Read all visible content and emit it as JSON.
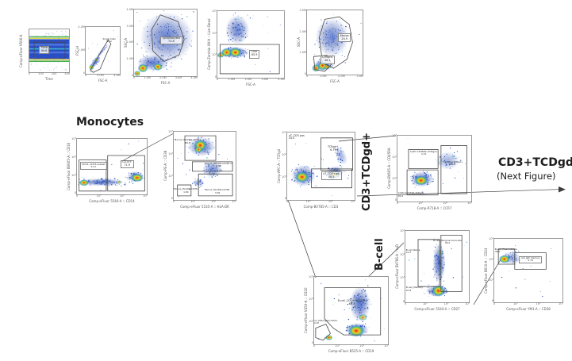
{
  "figure": {
    "section_labels": {
      "monocytes": "Monocytes",
      "cd3_tcrgd_pos": "CD3+TCDgd+",
      "bcell": "B-cell",
      "next_figure_line1": "CD3+TCDgd-",
      "next_figure_line2": "(Next Figure)"
    }
  },
  "chart_data": [
    {
      "id": "time-gate",
      "type": "flow-pseudocolor-scatter",
      "xlabel": "Time",
      "ylabel": "Comp-eFluor V506-A",
      "xticks": "0 100 200 300",
      "yticks": "",
      "gates": [
        {
          "name": "Time",
          "value": "99.8"
        }
      ]
    },
    {
      "id": "singlets",
      "type": "flow-pseudocolor-scatter",
      "xlabel": "FSC-A",
      "ylabel": "FSC-H",
      "xticks": "0 2.0M 4.0M",
      "yticks": "4.0M 2.0M 0",
      "gates": [
        {
          "name": "Single Cells",
          "value": "95.4"
        }
      ]
    },
    {
      "id": "lymphocytes",
      "type": "flow-pseudocolor-scatter",
      "xlabel": "FSC-A",
      "ylabel": "SSC-A",
      "xticks": "0 1.0M 2.0M 3.0M 4.0M",
      "yticks": "4.0M 3.0M 2.0M 1.0M 0",
      "gates": [
        {
          "name": "Lymphocytes",
          "value": "72.8"
        }
      ]
    },
    {
      "id": "live",
      "type": "flow-pseudocolor-scatter",
      "xlabel": "FSC-A",
      "ylabel": "Comp-Zombie UV-A :: Live-Dead",
      "xticks": "0 1.0M 2.0M 3.0M 4.0M",
      "yticks": "10⁵ 10⁴ 10³ 0",
      "gates": [
        {
          "name": "Live",
          "value": "65.9"
        }
      ]
    },
    {
      "id": "monos-lymphs",
      "type": "flow-pseudocolor-scatter",
      "xlabel": "FSC-A",
      "ylabel": "SSC-A",
      "xticks": "0 1.0M 2.0M 3.0M",
      "yticks": "3.0M 2.0M 1.0M 0",
      "gates": [
        {
          "name": "Monos",
          "value": "24.9"
        },
        {
          "name": "Lymphs",
          "value": "48.1"
        }
      ]
    },
    {
      "id": "cd14-cd16",
      "type": "flow-pseudocolor-scatter",
      "xlabel": "Comp-eFluor 5540-A :: CD14",
      "ylabel": "Comp-eFluor BV605-A :: CD16",
      "xticks": "0 10³ 10⁴ 10⁵",
      "yticks": "10⁵ 10⁴ 10³ 0",
      "gates": [
        {
          "name": "CD14- CD16 subset",
          "value": "21.2"
        },
        {
          "name": "CD14+",
          "value": "71.9"
        }
      ]
    },
    {
      "id": "hladr-cd38-monos",
      "type": "flow-pseudocolor-scatter",
      "xlabel": "Comp-eFluor 5535-A :: HLA-DR",
      "ylabel": "Comp-PE-A :: CD38",
      "xticks": "0 10³ 10⁴ 10⁵",
      "yticks": "10⁵ 10⁴ 10³ 0",
      "gates": [
        {
          "name": "Monos_HLADR+CD38+",
          "value": "80.8"
        },
        {
          "name": "Monos_HLADR+CD38 lo",
          "value": "8.99"
        },
        {
          "name": "Monos_HLADR-CD38-",
          "value": "1.84"
        },
        {
          "name": "Monos_HLADR+CD38-",
          "value": "3.99"
        }
      ]
    },
    {
      "id": "cd3-tcrgd",
      "type": "flow-pseudocolor-scatter",
      "xlabel": "Comp-BV785-A :: CD3",
      "ylabel": "Comp-APC-A :: TCRgd",
      "xticks": "0 10³ 10⁴ 10⁵",
      "yticks": "10⁵ 10⁴ 10³ 0",
      "gates": [
        {
          "name": "uT_CD3 pos",
          "value": "24.3"
        },
        {
          "name": "TCRgd+",
          "value": "6.79"
        },
        {
          "name": "uT_CD3+gd-",
          "value": "58.5"
        }
      ]
    },
    {
      "id": "ccr7-cd45ra",
      "type": "flow-pseudocolor-scatter",
      "xlabel": "Comp-R718-A :: CCR7",
      "ylabel": "Comp-BV605-A :: CD45RA",
      "xticks": "0 10³ 10⁴ 10⁵",
      "yticks": "10⁵ 10⁴ 10³ 0",
      "gates": [
        {
          "name": "CCR7-CD45RA+TCRgd+",
          "value": "2.21"
        },
        {
          "name": "CCR7hi+TCRgd+",
          "value": "16.2"
        },
        {
          "name": "CCR7-CD45RA-TCRgd+",
          "value": "80.4"
        }
      ]
    },
    {
      "id": "cd19-cd20",
      "type": "flow-pseudocolor-scatter",
      "xlabel": "Comp-eFluor B525-A :: CD19",
      "ylabel": "Comp-eFluor V450-A :: CD20",
      "xticks": "0 10³ 10⁴ 10⁵",
      "yticks": "10⁵ 10⁴ 10³ 0",
      "gates": [
        {
          "name": "B-cell_CD19+CD20+",
          "value": "68.3"
        },
        {
          "name": "uT_CD3neg19+CD20-",
          "value": "0.32"
        }
      ]
    },
    {
      "id": "igd-cd27-bcells",
      "type": "flow-pseudocolor-scatter",
      "xlabel": "Comp-eFluor 5540-A :: CD27",
      "ylabel": "Comp-eFluor BV786-A :: IgD",
      "xticks": "0 10³ 10⁴ 10⁵",
      "yticks": "10⁵ 10⁴ 10³ 0",
      "gates": [
        {
          "name": "B-cell_Naive",
          "value": "0.27"
        },
        {
          "name": "B-cell_Marginal zone-like",
          "value": "39.2"
        },
        {
          "name": "B-cell_Memory",
          "value": "97.8"
        }
      ]
    },
    {
      "id": "plasmablasts",
      "type": "flow-pseudocolor-scatter",
      "xlabel": "Comp-eFluor YM1-A :: CD38",
      "ylabel": "Comp-eFluor B610-A :: CD24",
      "xticks": "0 10³ 10⁴ 10⁵",
      "yticks": "10⁵ 10⁴ 10³ 0",
      "gates": [
        {
          "name": "B-cell_Plasmablast",
          "value": "46.5"
        },
        {
          "name": "cell_IgD memory",
          "value": "2.76"
        }
      ]
    }
  ]
}
